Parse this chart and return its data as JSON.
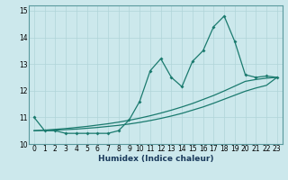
{
  "xlabel": "Humidex (Indice chaleur)",
  "background_color": "#cce8ec",
  "line_color": "#1a7a6e",
  "grid_color": "#b0d4d8",
  "xlim": [
    -0.5,
    23.5
  ],
  "ylim": [
    10,
    15.2
  ],
  "yticks": [
    10,
    11,
    12,
    13,
    14,
    15
  ],
  "xticks": [
    0,
    1,
    2,
    3,
    4,
    5,
    6,
    7,
    8,
    9,
    10,
    11,
    12,
    13,
    14,
    15,
    16,
    17,
    18,
    19,
    20,
    21,
    22,
    23
  ],
  "series1_x": [
    0,
    1,
    2,
    3,
    4,
    5,
    6,
    7,
    8,
    9,
    10,
    11,
    12,
    13,
    14,
    15,
    16,
    17,
    18,
    19,
    20,
    21,
    22,
    23
  ],
  "series1_y": [
    11.0,
    10.5,
    10.5,
    10.4,
    10.4,
    10.4,
    10.4,
    10.4,
    10.5,
    10.9,
    11.6,
    12.75,
    13.2,
    12.5,
    12.15,
    13.1,
    13.5,
    14.4,
    14.8,
    13.85,
    12.6,
    12.5,
    12.55,
    12.5
  ],
  "series2_x": [
    0,
    1,
    2,
    3,
    4,
    5,
    6,
    7,
    8,
    9,
    10,
    11,
    12,
    13,
    14,
    15,
    16,
    17,
    18,
    19,
    20,
    21,
    22,
    23
  ],
  "series2_y": [
    10.5,
    10.52,
    10.55,
    10.58,
    10.62,
    10.66,
    10.71,
    10.76,
    10.82,
    10.89,
    10.97,
    11.06,
    11.16,
    11.27,
    11.39,
    11.52,
    11.67,
    11.82,
    11.99,
    12.17,
    12.35,
    12.42,
    12.47,
    12.5
  ],
  "series3_x": [
    0,
    1,
    2,
    3,
    4,
    5,
    6,
    7,
    8,
    9,
    10,
    11,
    12,
    13,
    14,
    15,
    16,
    17,
    18,
    19,
    20,
    21,
    22,
    23
  ],
  "series3_y": [
    10.5,
    10.51,
    10.52,
    10.54,
    10.56,
    10.59,
    10.62,
    10.66,
    10.7,
    10.75,
    10.81,
    10.88,
    10.96,
    11.05,
    11.15,
    11.27,
    11.39,
    11.53,
    11.68,
    11.83,
    11.98,
    12.1,
    12.2,
    12.5
  ],
  "xlabel_fontsize": 6.5,
  "tick_fontsize": 5.5
}
